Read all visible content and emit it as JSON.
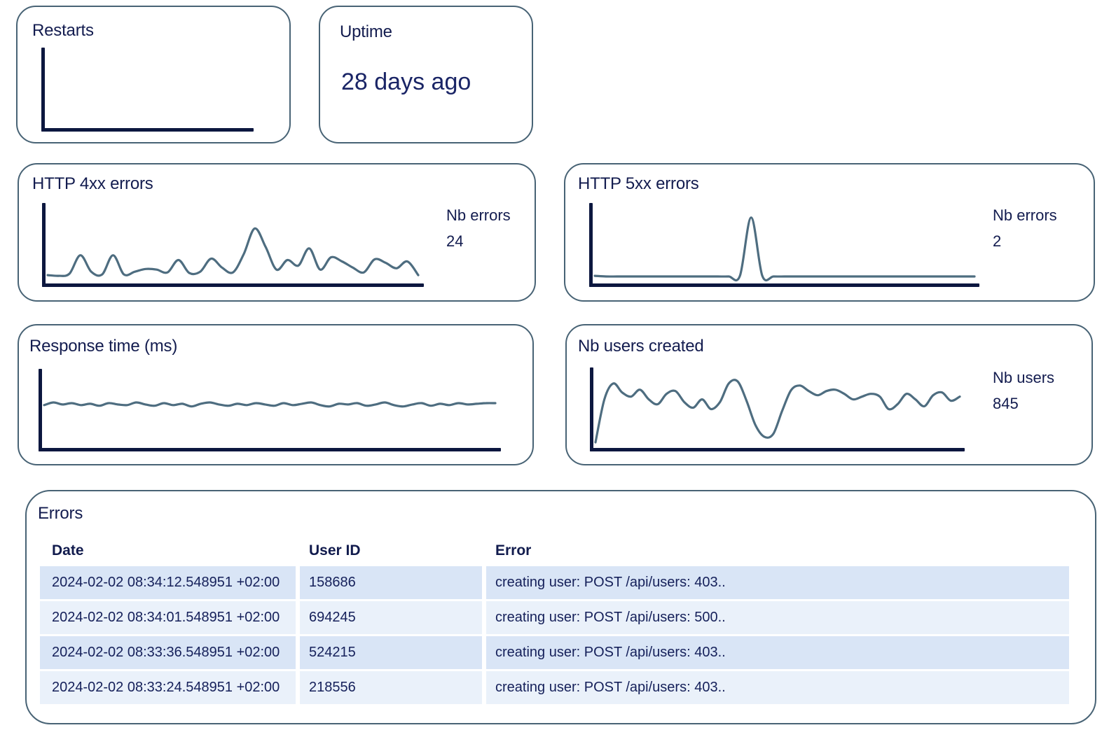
{
  "colors": {
    "card_border": "#486375",
    "axis": "#0c173f",
    "chart_line": "#4e6d80",
    "text_navy": "#131c4f",
    "uptime_value_color": "#1a2566",
    "row_stripe_dark": "#d9e5f6",
    "row_stripe_light": "#eaf1fa"
  },
  "cards": {
    "restarts": {
      "title": "Restarts"
    },
    "uptime": {
      "title": "Uptime",
      "value": "28 days ago"
    },
    "http4xx": {
      "title": "HTTP 4xx errors",
      "metric_label": "Nb errors",
      "metric_value": "24"
    },
    "http5xx": {
      "title": "HTTP 5xx errors",
      "metric_label": "Nb errors",
      "metric_value": "2"
    },
    "response_time": {
      "title": "Response time (ms)"
    },
    "users_created": {
      "title": "Nb users created",
      "metric_label": "Nb users",
      "metric_value": "845"
    }
  },
  "chart_data": [
    {
      "id": "restarts",
      "type": "line",
      "title": "Restarts",
      "values": [],
      "xlabel": "",
      "ylabel": "",
      "note_axes": "empty L-shaped axes, no data plotted"
    },
    {
      "id": "http4xx",
      "type": "line",
      "title": "HTTP 4xx errors",
      "legend": "Nb errors",
      "total": 24,
      "values": [
        4,
        3,
        6,
        33,
        9,
        5,
        33,
        5,
        9,
        13,
        12,
        8,
        26,
        7,
        9,
        28,
        15,
        8,
        35,
        72,
        45,
        12,
        26,
        18,
        43,
        12,
        30,
        24,
        15,
        8,
        27,
        22,
        14,
        24,
        4
      ],
      "xlabel": "",
      "ylabel": "",
      "y_scale": "relative height 0-100, ticks unlabeled"
    },
    {
      "id": "http5xx",
      "type": "line",
      "title": "HTTP 5xx errors",
      "legend": "Nb errors",
      "total": 2,
      "values": [
        3,
        2,
        2,
        2,
        2,
        2,
        2,
        2,
        2,
        2,
        2,
        2,
        2,
        3,
        88,
        3,
        2,
        2,
        2,
        2,
        2,
        2,
        2,
        2,
        2,
        2,
        2,
        2,
        2,
        2,
        2,
        2,
        2,
        2,
        2
      ],
      "xlabel": "",
      "ylabel": "",
      "y_scale": "relative height 0-100, single sharp spike ~41% across"
    },
    {
      "id": "response_time",
      "type": "line",
      "title": "Response time (ms)",
      "values": [
        56,
        60,
        57,
        59,
        56,
        58,
        55,
        59,
        57,
        56,
        60,
        57,
        55,
        59,
        56,
        58,
        54,
        58,
        60,
        57,
        55,
        58,
        56,
        59,
        57,
        55,
        59,
        56,
        58,
        60,
        56,
        54,
        58,
        57,
        59,
        55,
        57,
        60,
        56,
        54,
        57,
        59,
        55,
        58,
        56,
        59,
        57,
        58,
        59,
        59
      ],
      "xlabel": "",
      "ylabel": "",
      "y_scale": "relative height 0-100, flat noisy line around mid-height"
    },
    {
      "id": "users_created",
      "type": "line",
      "title": "Nb users created",
      "legend": "Nb users",
      "total": 845,
      "values": [
        0,
        62,
        85,
        72,
        66,
        76,
        62,
        55,
        70,
        74,
        58,
        50,
        62,
        48,
        58,
        85,
        88,
        60,
        25,
        8,
        12,
        45,
        75,
        82,
        74,
        68,
        74,
        76,
        70,
        62,
        66,
        70,
        66,
        48,
        55,
        70,
        62,
        52,
        68,
        72,
        60,
        66
      ],
      "xlabel": "",
      "ylabel": "",
      "y_scale": "relative height 0-100, deep dip ~45% across"
    }
  ],
  "errors_table": {
    "title": "Errors",
    "columns": [
      "Date",
      "User ID",
      "Error"
    ],
    "rows": [
      {
        "date": "2024-02-02 08:34:12.548951 +02:00",
        "user_id": "158686",
        "error": "creating user: POST /api/users: 403.."
      },
      {
        "date": "2024-02-02 08:34:01.548951 +02:00",
        "user_id": "694245",
        "error": "creating user: POST /api/users: 500.."
      },
      {
        "date": "2024-02-02 08:33:36.548951 +02:00",
        "user_id": "524215",
        "error": "creating user: POST /api/users: 403.."
      },
      {
        "date": "2024-02-02 08:33:24.548951 +02:00",
        "user_id": "218556",
        "error": "creating user: POST /api/users: 403.."
      }
    ]
  }
}
